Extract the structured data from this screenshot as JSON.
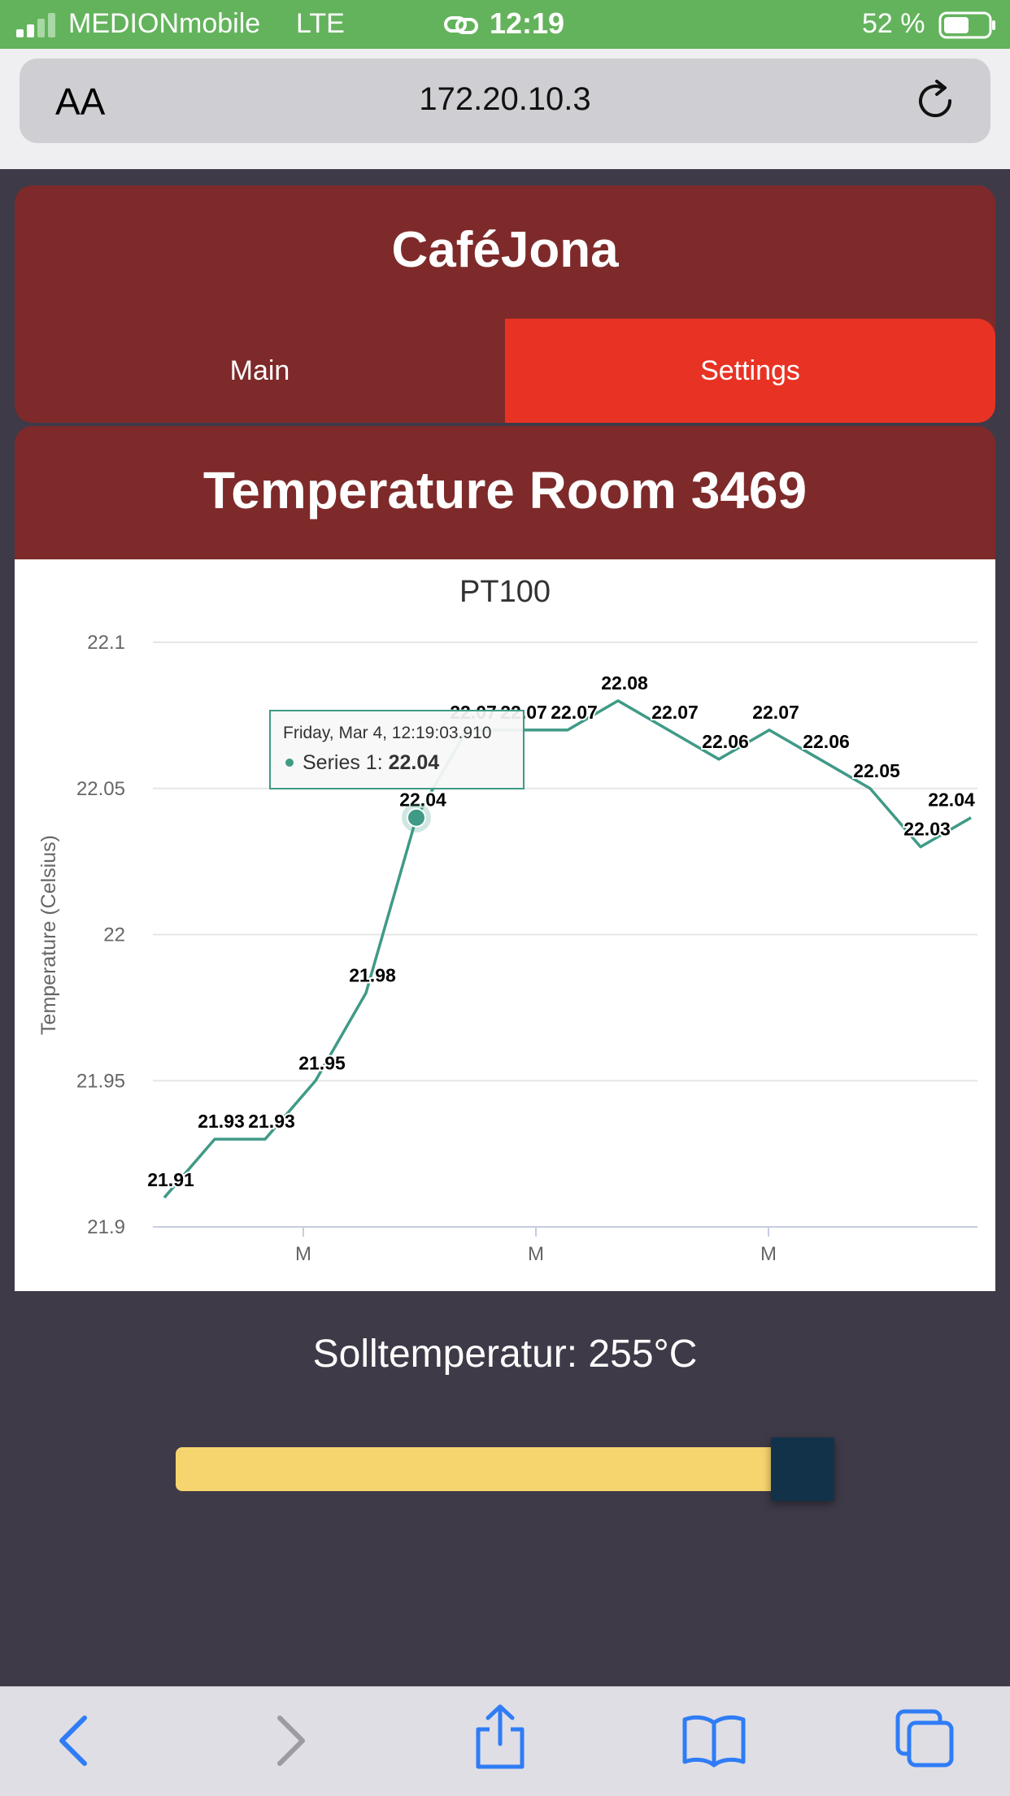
{
  "status_bar": {
    "carrier": "MEDIONmobile",
    "network": "LTE",
    "time": "12:19",
    "battery": "52 %"
  },
  "browser": {
    "text_size_label": "AA",
    "url": "172.20.10.3"
  },
  "header": {
    "brand": "CaféJona",
    "tabs": [
      {
        "label": "Main",
        "active": false
      },
      {
        "label": "Settings",
        "active": true
      }
    ]
  },
  "page_title": "Temperature Room 3469",
  "chart_data": {
    "type": "line",
    "title": "PT100",
    "ylabel": "Temperature (Celsius)",
    "xlabel": "",
    "ylim": [
      21.9,
      22.1
    ],
    "yticks": [
      "21.9",
      "21.95",
      "22",
      "22.05",
      "22.1"
    ],
    "xticks": [
      "M",
      "M",
      "M"
    ],
    "grid": true,
    "line_color": "#3f9a86",
    "series": [
      {
        "name": "Series 1",
        "values": [
          21.91,
          21.93,
          21.93,
          21.95,
          21.98,
          22.04,
          22.07,
          22.07,
          22.07,
          22.08,
          22.07,
          22.06,
          22.07,
          22.06,
          22.05,
          22.03,
          22.04
        ]
      }
    ],
    "tooltip": {
      "date": "Friday, Mar 4, 12:19:03.910",
      "series": "Series 1: ",
      "value": "22.04",
      "point_index": 5
    }
  },
  "target": {
    "label": "Solltemperatur: 255°C",
    "slider_fraction": 1.0
  },
  "toolbar": {
    "icons": [
      "back-icon",
      "forward-icon",
      "share-icon",
      "bookmarks-icon",
      "tabs-icon"
    ]
  }
}
